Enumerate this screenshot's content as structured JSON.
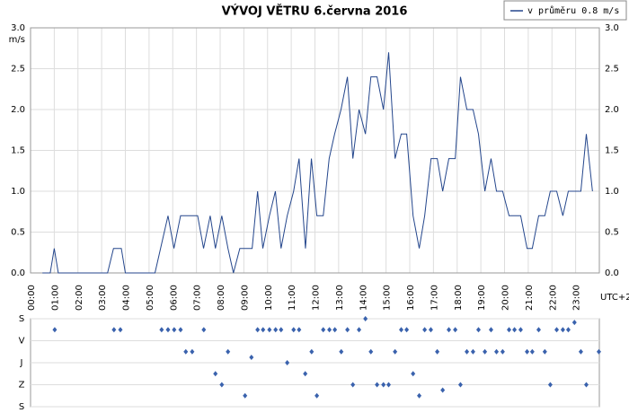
{
  "chart_data": [
    {
      "type": "line",
      "title": "VÝVOJ VĚTRU  6.června 2016",
      "y_label": "m/s",
      "x_label": "UTC+2",
      "legend": "v průměru 0.8 m/s",
      "color": "#24468c",
      "grid": true,
      "xlim": [
        0,
        24
      ],
      "xticks": [
        {
          "value": 0,
          "label": "00:00"
        },
        {
          "value": 1,
          "label": "01:00"
        },
        {
          "value": 2,
          "label": "02:00"
        },
        {
          "value": 3,
          "label": "03:00"
        },
        {
          "value": 4,
          "label": "04:00"
        },
        {
          "value": 5,
          "label": "05:00"
        },
        {
          "value": 6,
          "label": "06:00"
        },
        {
          "value": 7,
          "label": "07:00"
        },
        {
          "value": 8,
          "label": "08:00"
        },
        {
          "value": 9,
          "label": "09:00"
        },
        {
          "value": 10,
          "label": "10:00"
        },
        {
          "value": 11,
          "label": "11:00"
        },
        {
          "value": 12,
          "label": "12:00"
        },
        {
          "value": 13,
          "label": "13:00"
        },
        {
          "value": 14,
          "label": "14:00"
        },
        {
          "value": 15,
          "label": "15:00"
        },
        {
          "value": 16,
          "label": "16:00"
        },
        {
          "value": 17,
          "label": "17:00"
        },
        {
          "value": 18,
          "label": "18:00"
        },
        {
          "value": 19,
          "label": "19:00"
        },
        {
          "value": 20,
          "label": "20:00"
        },
        {
          "value": 21,
          "label": "21:00"
        },
        {
          "value": 22,
          "label": "22:00"
        },
        {
          "value": 23,
          "label": "23:00"
        }
      ],
      "ylim": [
        0,
        3
      ],
      "yticks": [
        {
          "value": 0,
          "label": "0.0"
        },
        0.5,
        {
          "value": 1,
          "label": "1.0"
        },
        1.5,
        {
          "value": 2,
          "label": "2.0"
        },
        2.5,
        {
          "value": 3,
          "label": "3.0"
        }
      ],
      "x": [
        0.5,
        0.83,
        1.0,
        1.17,
        3.25,
        3.5,
        3.83,
        4.0,
        5.25,
        5.8,
        6.05,
        6.33,
        7.05,
        7.3,
        7.58,
        7.8,
        8.07,
        8.33,
        8.56,
        8.83,
        9.35,
        9.58,
        9.8,
        10.08,
        10.33,
        10.57,
        10.83,
        11.1,
        11.33,
        11.6,
        11.85,
        12.08,
        12.35,
        12.6,
        12.83,
        13.1,
        13.37,
        13.6,
        13.86,
        14.13,
        14.36,
        14.62,
        14.89,
        15.11,
        15.38,
        15.64,
        15.87,
        16.14,
        16.4,
        16.63,
        16.9,
        17.16,
        17.39,
        17.65,
        17.92,
        18.14,
        18.41,
        18.67,
        18.9,
        19.17,
        19.43,
        19.66,
        19.92,
        20.19,
        20.68,
        20.95,
        21.17,
        21.44,
        21.7,
        21.93,
        22.2,
        22.46,
        22.69,
        23.22,
        23.45,
        23.71
      ],
      "values": [
        0,
        0,
        0.3,
        0,
        0,
        0.3,
        0.3,
        0,
        0,
        0.7,
        0.3,
        0.7,
        0.7,
        0.3,
        0.7,
        0.3,
        0.7,
        0.3,
        0,
        0.3,
        0.3,
        1.0,
        0.3,
        0.7,
        1.0,
        0.3,
        0.7,
        1.0,
        1.4,
        0.3,
        1.4,
        0.7,
        0.7,
        1.4,
        1.7,
        2.0,
        2.4,
        1.4,
        2.0,
        1.7,
        2.4,
        2.4,
        2.0,
        2.7,
        1.4,
        1.7,
        1.7,
        0.7,
        0.3,
        0.7,
        1.4,
        1.4,
        1.0,
        1.4,
        1.4,
        2.4,
        2.0,
        2.0,
        1.7,
        1.0,
        1.4,
        1.0,
        1.0,
        0.7,
        0.7,
        0.3,
        0.3,
        0.7,
        0.7,
        1.0,
        1.0,
        0.7,
        1.0,
        1.0,
        1.7,
        1.0
      ]
    },
    {
      "type": "scatter",
      "color": "#3a62ad",
      "xlim": [
        0,
        24
      ],
      "ylim": [
        0,
        360
      ],
      "y_inverted": true,
      "yticks": [
        {
          "value": 0,
          "label": "S"
        },
        {
          "value": 90,
          "label": "V"
        },
        {
          "value": 180,
          "label": "J"
        },
        {
          "value": 270,
          "label": "Z"
        },
        {
          "value": 360,
          "label": "S"
        }
      ],
      "x": [
        1.02,
        3.52,
        3.79,
        5.53,
        5.8,
        6.06,
        6.33,
        6.55,
        6.82,
        7.31,
        7.8,
        8.07,
        8.33,
        9.05,
        9.32,
        9.58,
        9.81,
        10.08,
        10.34,
        10.57,
        10.83,
        11.1,
        11.33,
        11.59,
        11.86,
        12.08,
        12.35,
        12.61,
        12.84,
        13.11,
        13.37,
        13.6,
        13.86,
        14.13,
        14.36,
        14.62,
        14.89,
        15.11,
        15.38,
        15.64,
        15.87,
        16.14,
        16.4,
        16.63,
        16.89,
        17.16,
        17.39,
        17.65,
        17.92,
        18.14,
        18.41,
        18.67,
        18.9,
        19.17,
        19.43,
        19.66,
        19.92,
        20.19,
        20.42,
        20.68,
        20.95,
        21.17,
        21.44,
        21.7,
        21.93,
        22.2,
        22.46,
        22.69,
        22.95,
        23.22,
        23.45,
        23.98
      ],
      "values": [
        45,
        45,
        45,
        45,
        45,
        45,
        45,
        135,
        135,
        45,
        225,
        270,
        135,
        315,
        158,
        45,
        45,
        45,
        45,
        45,
        180,
        45,
        45,
        225,
        135,
        315,
        45,
        45,
        45,
        135,
        45,
        270,
        45,
        0,
        135,
        270,
        270,
        270,
        135,
        45,
        45,
        225,
        315,
        45,
        45,
        135,
        292,
        45,
        45,
        270,
        135,
        135,
        45,
        135,
        45,
        135,
        135,
        45,
        45,
        45,
        135,
        135,
        45,
        135,
        270,
        45,
        45,
        45,
        15,
        135,
        270,
        135
      ]
    }
  ]
}
